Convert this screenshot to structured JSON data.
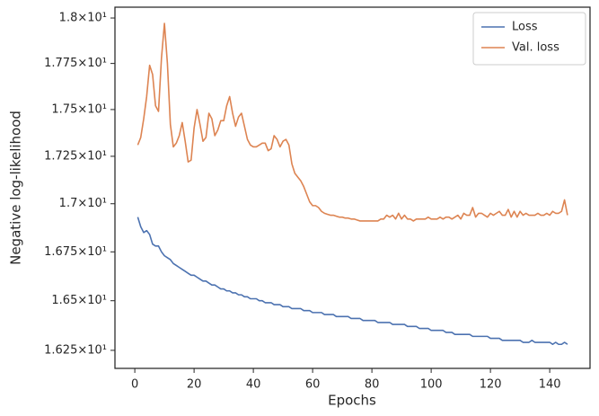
{
  "chart_data": {
    "type": "line",
    "x_label": "Epochs",
    "y_label": "Negative log-likelihood",
    "yscale": "log",
    "legend": "upper right",
    "grid": false,
    "xlim": [
      -6.7,
      153.6
    ],
    "xticks": [
      0,
      20,
      40,
      60,
      80,
      100,
      120,
      140
    ],
    "ylim": [
      16.16,
      18.06
    ],
    "yticks": [
      {
        "value": 16.25,
        "label": "1.625×10¹"
      },
      {
        "value": 16.5,
        "label": "1.65×10¹"
      },
      {
        "value": 16.75,
        "label": "1.675×10¹"
      },
      {
        "value": 17,
        "label": "1.7×10¹"
      },
      {
        "value": 17.25,
        "label": "1.725×10¹"
      },
      {
        "value": 17.5,
        "label": "1.75×10¹"
      },
      {
        "value": 17.75,
        "label": "1.775×10¹"
      },
      {
        "value": 18,
        "label": "1.8×10¹"
      }
    ],
    "x": [
      1,
      2,
      3,
      4,
      5,
      6,
      7,
      8,
      9,
      10,
      11,
      12,
      13,
      14,
      15,
      16,
      17,
      18,
      19,
      20,
      21,
      22,
      23,
      24,
      25,
      26,
      27,
      28,
      29,
      30,
      31,
      32,
      33,
      34,
      35,
      36,
      37,
      38,
      39,
      40,
      41,
      42,
      43,
      44,
      45,
      46,
      47,
      48,
      49,
      50,
      51,
      52,
      53,
      54,
      55,
      56,
      57,
      58,
      59,
      60,
      61,
      62,
      63,
      64,
      65,
      66,
      67,
      68,
      69,
      70,
      71,
      72,
      73,
      74,
      75,
      76,
      77,
      78,
      79,
      80,
      81,
      82,
      83,
      84,
      85,
      86,
      87,
      88,
      89,
      90,
      91,
      92,
      93,
      94,
      95,
      96,
      97,
      98,
      99,
      100,
      101,
      102,
      103,
      104,
      105,
      106,
      107,
      108,
      109,
      110,
      111,
      112,
      113,
      114,
      115,
      116,
      117,
      118,
      119,
      120,
      121,
      122,
      123,
      124,
      125,
      126,
      127,
      128,
      129,
      130,
      131,
      132,
      133,
      134,
      135,
      136,
      137,
      138,
      139,
      140,
      141,
      142,
      143,
      144,
      145,
      146
    ],
    "series": [
      {
        "name": "Loss",
        "color": "#4c72b0",
        "values": [
          16.93,
          16.88,
          16.85,
          16.86,
          16.84,
          16.79,
          16.78,
          16.78,
          16.75,
          16.73,
          16.72,
          16.71,
          16.69,
          16.68,
          16.67,
          16.66,
          16.65,
          16.64,
          16.63,
          16.63,
          16.62,
          16.61,
          16.6,
          16.6,
          16.59,
          16.58,
          16.58,
          16.57,
          16.56,
          16.56,
          16.55,
          16.55,
          16.54,
          16.54,
          16.53,
          16.53,
          16.52,
          16.52,
          16.51,
          16.51,
          16.51,
          16.5,
          16.5,
          16.49,
          16.49,
          16.49,
          16.48,
          16.48,
          16.48,
          16.47,
          16.47,
          16.47,
          16.46,
          16.46,
          16.46,
          16.46,
          16.45,
          16.45,
          16.45,
          16.44,
          16.44,
          16.44,
          16.44,
          16.43,
          16.43,
          16.43,
          16.43,
          16.42,
          16.42,
          16.42,
          16.42,
          16.42,
          16.41,
          16.41,
          16.41,
          16.41,
          16.4,
          16.4,
          16.4,
          16.4,
          16.4,
          16.39,
          16.39,
          16.39,
          16.39,
          16.39,
          16.38,
          16.38,
          16.38,
          16.38,
          16.38,
          16.37,
          16.37,
          16.37,
          16.37,
          16.36,
          16.36,
          16.36,
          16.36,
          16.35,
          16.35,
          16.35,
          16.35,
          16.35,
          16.34,
          16.34,
          16.34,
          16.33,
          16.33,
          16.33,
          16.33,
          16.33,
          16.33,
          16.32,
          16.32,
          16.32,
          16.32,
          16.32,
          16.32,
          16.31,
          16.31,
          16.31,
          16.31,
          16.3,
          16.3,
          16.3,
          16.3,
          16.3,
          16.3,
          16.3,
          16.29,
          16.29,
          16.29,
          16.3,
          16.29,
          16.29,
          16.29,
          16.29,
          16.29,
          16.29,
          16.28,
          16.29,
          16.28,
          16.28,
          16.29,
          16.28
        ]
      },
      {
        "name": "Val. loss",
        "color": "#dd8452",
        "values": [
          17.31,
          17.35,
          17.45,
          17.57,
          17.74,
          17.69,
          17.52,
          17.49,
          17.78,
          17.97,
          17.75,
          17.42,
          17.3,
          17.32,
          17.36,
          17.43,
          17.33,
          17.22,
          17.23,
          17.4,
          17.5,
          17.42,
          17.33,
          17.35,
          17.48,
          17.45,
          17.36,
          17.39,
          17.44,
          17.44,
          17.52,
          17.57,
          17.48,
          17.41,
          17.46,
          17.48,
          17.41,
          17.34,
          17.31,
          17.3,
          17.3,
          17.31,
          17.32,
          17.32,
          17.28,
          17.29,
          17.36,
          17.34,
          17.3,
          17.33,
          17.34,
          17.31,
          17.21,
          17.16,
          17.14,
          17.12,
          17.09,
          17.05,
          17.01,
          16.99,
          16.99,
          16.98,
          16.96,
          16.95,
          16.945,
          16.94,
          16.94,
          16.935,
          16.93,
          16.93,
          16.925,
          16.925,
          16.92,
          16.92,
          16.915,
          16.91,
          16.91,
          16.91,
          16.91,
          16.91,
          16.91,
          16.91,
          16.92,
          16.92,
          16.94,
          16.93,
          16.94,
          16.92,
          16.95,
          16.92,
          16.94,
          16.92,
          16.92,
          16.91,
          16.92,
          16.92,
          16.92,
          16.92,
          16.93,
          16.92,
          16.92,
          16.92,
          16.93,
          16.92,
          16.93,
          16.93,
          16.92,
          16.93,
          16.94,
          16.92,
          16.95,
          16.94,
          16.94,
          16.98,
          16.93,
          16.95,
          16.95,
          16.94,
          16.93,
          16.95,
          16.94,
          16.95,
          16.96,
          16.94,
          16.94,
          16.97,
          16.93,
          16.96,
          16.93,
          16.96,
          16.94,
          16.95,
          16.94,
          16.94,
          16.94,
          16.95,
          16.94,
          16.94,
          16.95,
          16.94,
          16.96,
          16.95,
          16.95,
          16.96,
          17.02,
          16.94
        ]
      }
    ]
  }
}
